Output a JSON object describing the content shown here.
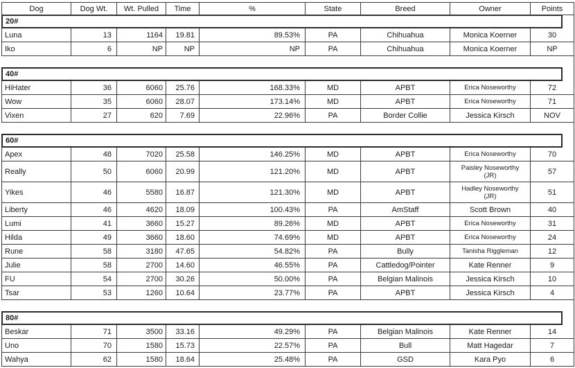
{
  "table": {
    "columns": [
      {
        "key": "dog",
        "label": "Dog"
      },
      {
        "key": "dog-wt",
        "label": "Dog Wt."
      },
      {
        "key": "wt-pulled",
        "label": "Wt. Pulled"
      },
      {
        "key": "time",
        "label": "Time"
      },
      {
        "key": "pct",
        "label": "%"
      },
      {
        "key": "state",
        "label": "State"
      },
      {
        "key": "breed",
        "label": "Breed"
      },
      {
        "key": "owner",
        "label": "Owner"
      },
      {
        "key": "points",
        "label": "Points"
      }
    ],
    "sections": [
      {
        "label": "20#",
        "rows": [
          [
            "Luna",
            "13",
            "1164",
            "19.81",
            "89.53%",
            "PA",
            "Chihuahua",
            "Monica Koerner",
            "30"
          ],
          [
            "Iko",
            "6",
            "NP",
            "NP",
            "NP",
            "PA",
            "Chihuahua",
            "Monica Koerner",
            "NP"
          ]
        ]
      },
      {
        "label": "40#",
        "rows": [
          [
            "HiHater",
            "36",
            "6060",
            "25.76",
            "168.33%",
            "MD",
            "APBT",
            "Erica Noseworthy",
            "72"
          ],
          [
            "Wow",
            "35",
            "6060",
            "28.07",
            "173.14%",
            "MD",
            "APBT",
            "Erica Noseworthy",
            "71"
          ],
          [
            "Vixen",
            "27",
            "620",
            "7.69",
            "22.96%",
            "PA",
            "Border Collie",
            "Jessica Kirsch",
            "NOV"
          ]
        ]
      },
      {
        "label": "60#",
        "rows": [
          [
            "Apex",
            "48",
            "7020",
            "25.58",
            "146.25%",
            "MD",
            "APBT",
            "Erica Noseworthy",
            "70"
          ],
          [
            "Really",
            "50",
            "6060",
            "20.99",
            "121.20%",
            "MD",
            "APBT",
            "Paisley Noseworthy (JR)",
            "57"
          ],
          [
            "Yikes",
            "46",
            "5580",
            "16.87",
            "121.30%",
            "MD",
            "APBT",
            "Hadley Noseworthy (JR)",
            "51"
          ],
          [
            "Liberty",
            "46",
            "4620",
            "18.09",
            "100.43%",
            "PA",
            "AmStaff",
            "Scott Brown",
            "40"
          ],
          [
            "Lumi",
            "41",
            "3660",
            "15.27",
            "89.26%",
            "MD",
            "APBT",
            "Erica Noseworthy",
            "31"
          ],
          [
            "Hilda",
            "49",
            "3660",
            "18.60",
            "74.69%",
            "MD",
            "APBT",
            "Erica Noseworthy",
            "24"
          ],
          [
            "Rune",
            "58",
            "3180",
            "47.65",
            "54.82%",
            "PA",
            "Bully",
            "Tanisha Riggleman",
            "12"
          ],
          [
            "Julie",
            "58",
            "2700",
            "14.60",
            "46.55%",
            "PA",
            "Cattledog/Pointer",
            "Kate Renner",
            "9"
          ],
          [
            "FU",
            "54",
            "2700",
            "30.26",
            "50.00%",
            "PA",
            "Belgian Malinois",
            "Jessica Kirsch",
            "10"
          ],
          [
            "Tsar",
            "53",
            "1260",
            "10.64",
            "23.77%",
            "PA",
            "APBT",
            "Jessica Kirsch",
            "4"
          ]
        ]
      },
      {
        "label": "80#",
        "rows": [
          [
            "Beskar",
            "71",
            "3500",
            "33.16",
            "49.29%",
            "PA",
            "Belgian Malinois",
            "Kate Renner",
            "14"
          ],
          [
            "Uno",
            "70",
            "1580",
            "15.73",
            "22.57%",
            "PA",
            "Bull",
            "Matt Hagedar",
            "7"
          ],
          [
            "Wahya",
            "62",
            "1580",
            "18.64",
            "25.48%",
            "PA",
            "GSD",
            "Kara Pyo",
            "6"
          ]
        ]
      }
    ]
  },
  "colors": {
    "grid_border": "#3b3b3b",
    "section_border": "#2a2a2a",
    "text": "#1a1a1a",
    "background": "#ffffff"
  }
}
